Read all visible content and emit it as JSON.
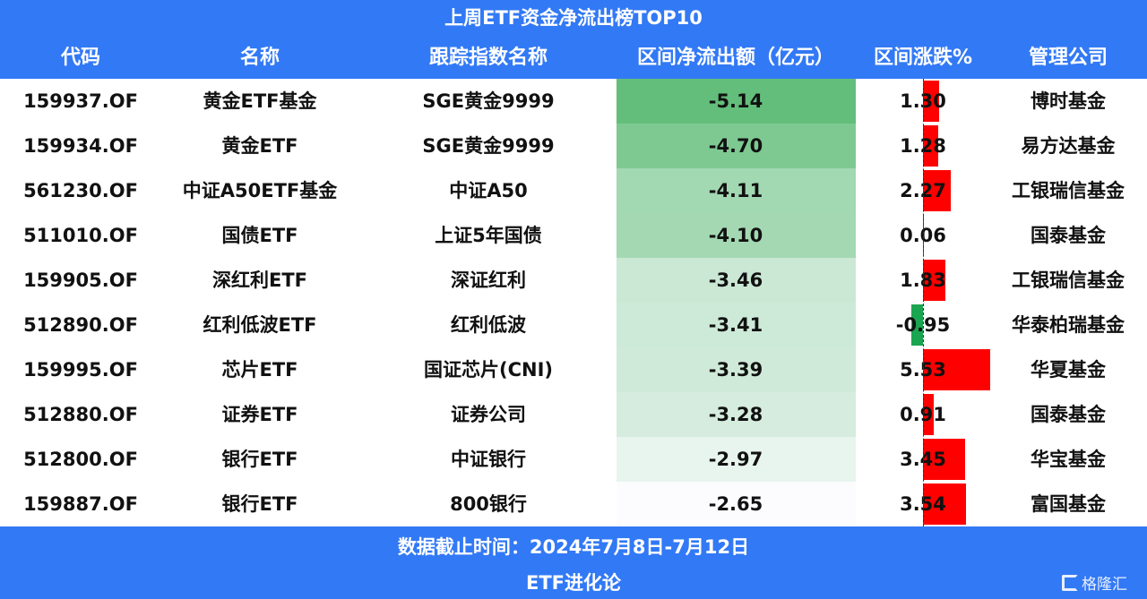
{
  "title": "上周ETF资金净流出榜TOP10",
  "columns": [
    "代码",
    "名称",
    "跟踪指数名称",
    "区间净流出额（亿元）",
    "区间涨跌%",
    "管理公司"
  ],
  "rows": [
    {
      "code": "159937.OF",
      "name": "黄金ETF基金",
      "index": "SGE黄金9999",
      "flow": "-5.14",
      "chg": "1.30",
      "company": "博时基金"
    },
    {
      "code": "159934.OF",
      "name": "黄金ETF",
      "index": "SGE黄金9999",
      "flow": "-4.70",
      "chg": "1.28",
      "company": "易方达基金"
    },
    {
      "code": "561230.OF",
      "name": "中证A50ETF基金",
      "index": "中证A50",
      "flow": "-4.11",
      "chg": "2.27",
      "company": "工银瑞信基金"
    },
    {
      "code": "511010.OF",
      "name": "国债ETF",
      "index": "上证5年国债",
      "flow": "-4.10",
      "chg": "0.06",
      "company": "国泰基金"
    },
    {
      "code": "159905.OF",
      "name": "深红利ETF",
      "index": "深证红利",
      "flow": "-3.46",
      "chg": "1.83",
      "company": "工银瑞信基金"
    },
    {
      "code": "512890.OF",
      "name": "红利低波ETF",
      "index": "红利低波",
      "flow": "-3.41",
      "chg": "-0.95",
      "company": "华泰柏瑞基金"
    },
    {
      "code": "159995.OF",
      "name": "芯片ETF",
      "index": "国证芯片(CNI)",
      "flow": "-3.39",
      "chg": "5.53",
      "company": "华夏基金"
    },
    {
      "code": "512880.OF",
      "name": "证券ETF",
      "index": "证券公司",
      "flow": "-3.28",
      "chg": "0.91",
      "company": "国泰基金"
    },
    {
      "code": "512800.OF",
      "name": "银行ETF",
      "index": "中证银行",
      "flow": "-2.97",
      "chg": "3.45",
      "company": "华宝基金"
    },
    {
      "code": "159887.OF",
      "name": "银行ETF",
      "index": "800银行",
      "flow": "-2.65",
      "chg": "3.54",
      "company": "富国基金"
    }
  ],
  "footer": {
    "date": "数据截止时间：2024年7月8日-7月12日",
    "source": "ETF进化论",
    "logo": "格隆汇"
  },
  "colors": {
    "header": "#3279f5",
    "heat_strong": "#63be7b",
    "heat_weak": "#fcfcff",
    "up": "#ff0000",
    "down": "#1aa550"
  }
}
